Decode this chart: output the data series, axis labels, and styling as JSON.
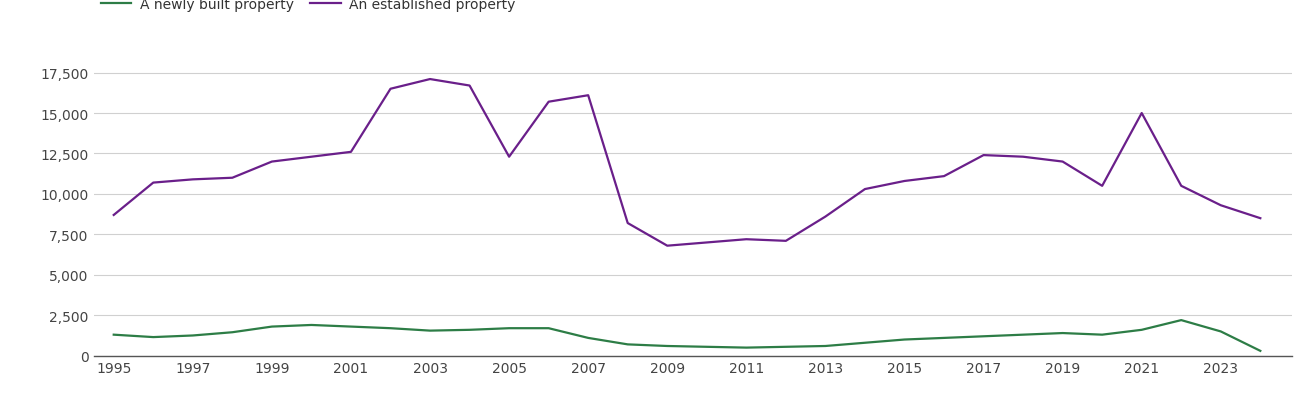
{
  "years": [
    1995,
    1996,
    1997,
    1998,
    1999,
    2000,
    2001,
    2002,
    2003,
    2004,
    2005,
    2006,
    2007,
    2008,
    2009,
    2010,
    2011,
    2012,
    2013,
    2014,
    2015,
    2016,
    2017,
    2018,
    2019,
    2020,
    2021,
    2022,
    2023,
    2024
  ],
  "new_builds": [
    1300,
    1150,
    1250,
    1450,
    1800,
    1900,
    1800,
    1700,
    1550,
    1600,
    1700,
    1700,
    1100,
    700,
    600,
    550,
    500,
    550,
    600,
    800,
    1000,
    1100,
    1200,
    1300,
    1400,
    1300,
    1600,
    2200,
    1500,
    300
  ],
  "established": [
    8700,
    10700,
    10900,
    11000,
    12000,
    12300,
    12600,
    16500,
    17100,
    16700,
    12300,
    15700,
    16100,
    8200,
    6800,
    7000,
    7200,
    7100,
    8600,
    10300,
    10800,
    11100,
    12400,
    12300,
    12000,
    10500,
    15000,
    10500,
    9300,
    8500
  ],
  "new_color": "#2d7d46",
  "established_color": "#6a1f8a",
  "new_label": "A newly built property",
  "established_label": "An established property",
  "ylim": [
    0,
    18500
  ],
  "yticks": [
    0,
    2500,
    5000,
    7500,
    10000,
    12500,
    15000,
    17500
  ],
  "xtick_years": [
    1995,
    1997,
    1999,
    2001,
    2003,
    2005,
    2007,
    2009,
    2011,
    2013,
    2015,
    2017,
    2019,
    2021,
    2023
  ],
  "background_color": "#ffffff",
  "grid_color": "#d0d0d0",
  "legend_fontsize": 10,
  "tick_fontsize": 10,
  "line_width": 1.6,
  "xlim_left": 1994.5,
  "xlim_right": 2024.8
}
